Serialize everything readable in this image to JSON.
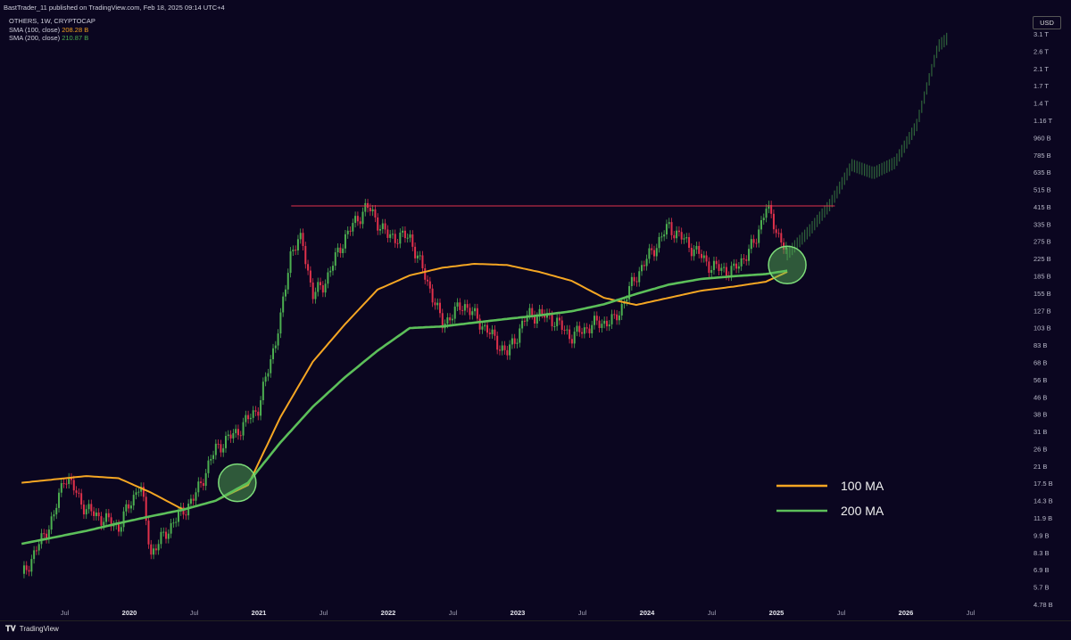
{
  "header": {
    "published": "BastTrader_11 published on TradingView.com, Feb 18, 2025 09:14 UTC+4",
    "symbol": "OTHERS, 1W, CRYPTOCAP",
    "sma100_label": "SMA (100, close)",
    "sma100_value": "208.28 B",
    "sma200_label": "SMA (200, close)",
    "sma200_value": "210.87 B"
  },
  "currency": "USD",
  "footer": {
    "brand": "TradingView"
  },
  "colors": {
    "background": "#0b0620",
    "up": "#4caf50",
    "down": "#e0314b",
    "ma100": "#f5a623",
    "ma200": "#5cbf5a",
    "resistance": "#e0314b",
    "highlight": "#5cbf5a"
  },
  "chart_data": {
    "type": "line",
    "scale": "log",
    "ylim": [
      4.78,
      3100
    ],
    "y_unit": "B USD",
    "y_ticks": [
      "3.1 T",
      "2.6 T",
      "2.1 T",
      "1.7 T",
      "1.4 T",
      "1.16 T",
      "960 B",
      "785 B",
      "635 B",
      "515 B",
      "415 B",
      "335 B",
      "275 B",
      "225 B",
      "185 B",
      "155 B",
      "127 B",
      "103 B",
      "83 B",
      "68 B",
      "56 B",
      "46 B",
      "38 B",
      "31 B",
      "26 B",
      "21 B",
      "17.5 B",
      "14.3 B",
      "11.9 B",
      "9.9 B",
      "8.3 B",
      "6.9 B",
      "5.7 B",
      "4.78 B"
    ],
    "x_ticks": [
      "Jul",
      "2020",
      "Jul",
      "2021",
      "Jul",
      "2022",
      "Jul",
      "2023",
      "Jul",
      "2024",
      "Jul",
      "2025",
      "Jul",
      "2026",
      "Jul"
    ],
    "xlim": [
      "2019-03",
      "2026-08"
    ],
    "legend": {
      "position": "bottom-right",
      "entries": [
        "100 MA",
        "200 MA"
      ]
    },
    "resistance_level": 440,
    "series": [
      {
        "name": "100 MA",
        "color": "#f5a623",
        "points": [
          [
            "2019-03",
            19
          ],
          [
            "2019-09",
            20.5
          ],
          [
            "2019-12",
            20
          ],
          [
            "2020-03",
            17
          ],
          [
            "2020-06",
            14
          ],
          [
            "2020-09",
            15.5
          ],
          [
            "2020-12",
            18.5
          ],
          [
            "2021-03",
            40
          ],
          [
            "2021-06",
            75
          ],
          [
            "2021-09",
            115
          ],
          [
            "2021-12",
            170
          ],
          [
            "2022-03",
            200
          ],
          [
            "2022-06",
            218
          ],
          [
            "2022-09",
            228
          ],
          [
            "2022-12",
            225
          ],
          [
            "2023-03",
            208
          ],
          [
            "2023-06",
            188
          ],
          [
            "2023-09",
            155
          ],
          [
            "2023-12",
            143
          ],
          [
            "2024-03",
            155
          ],
          [
            "2024-06",
            168
          ],
          [
            "2024-09",
            176
          ],
          [
            "2024-12",
            186
          ],
          [
            "2025-02",
            208
          ]
        ]
      },
      {
        "name": "200 MA",
        "color": "#5cbf5a",
        "points": [
          [
            "2019-03",
            9.5
          ],
          [
            "2019-09",
            11
          ],
          [
            "2019-12",
            12
          ],
          [
            "2020-03",
            13
          ],
          [
            "2020-06",
            14
          ],
          [
            "2020-09",
            15.5
          ],
          [
            "2020-12",
            19
          ],
          [
            "2021-03",
            30
          ],
          [
            "2021-06",
            45
          ],
          [
            "2021-09",
            63
          ],
          [
            "2021-12",
            85
          ],
          [
            "2022-03",
            110
          ],
          [
            "2022-06",
            112
          ],
          [
            "2022-09",
            117
          ],
          [
            "2022-12",
            122
          ],
          [
            "2023-03",
            127
          ],
          [
            "2023-06",
            133
          ],
          [
            "2023-09",
            144
          ],
          [
            "2023-12",
            162
          ],
          [
            "2024-03",
            180
          ],
          [
            "2024-06",
            192
          ],
          [
            "2024-09",
            198
          ],
          [
            "2024-12",
            203
          ],
          [
            "2025-02",
            211
          ]
        ]
      },
      {
        "name": "weekly_close",
        "color": "#4caf50",
        "points": [
          [
            "2019-03",
            6.5
          ],
          [
            "2019-06",
            13
          ],
          [
            "2019-07",
            21
          ],
          [
            "2019-09",
            14
          ],
          [
            "2019-12",
            11.5
          ],
          [
            "2020-02",
            19
          ],
          [
            "2020-03",
            8.5
          ],
          [
            "2020-05",
            12
          ],
          [
            "2020-07",
            16
          ],
          [
            "2020-09",
            28
          ],
          [
            "2020-11",
            34
          ],
          [
            "2021-01",
            45
          ],
          [
            "2021-03",
            120
          ],
          [
            "2021-04",
            270
          ],
          [
            "2021-05",
            300
          ],
          [
            "2021-06",
            160
          ],
          [
            "2021-07",
            180
          ],
          [
            "2021-09",
            310
          ],
          [
            "2021-11",
            440
          ],
          [
            "2022-01",
            310
          ],
          [
            "2022-03",
            310
          ],
          [
            "2022-05",
            165
          ],
          [
            "2022-06",
            115
          ],
          [
            "2022-08",
            145
          ],
          [
            "2022-10",
            110
          ],
          [
            "2022-12",
            82
          ],
          [
            "2023-02",
            130
          ],
          [
            "2023-04",
            125
          ],
          [
            "2023-06",
            100
          ],
          [
            "2023-08",
            115
          ],
          [
            "2023-10",
            120
          ],
          [
            "2023-12",
            200
          ],
          [
            "2024-03",
            350
          ],
          [
            "2024-05",
            280
          ],
          [
            "2024-07",
            220
          ],
          [
            "2024-09",
            210
          ],
          [
            "2024-11",
            290
          ],
          [
            "2024-12",
            440
          ],
          [
            "2025-02",
            255
          ]
        ]
      },
      {
        "name": "projection",
        "color": "#4caf50",
        "points": [
          [
            "2025-02",
            255
          ],
          [
            "2025-04",
            330
          ],
          [
            "2025-06",
            450
          ],
          [
            "2025-07",
            560
          ],
          [
            "2025-08",
            700
          ],
          [
            "2025-10",
            640
          ],
          [
            "2025-12",
            720
          ],
          [
            "2026-02",
            1100
          ],
          [
            "2026-04",
            2700
          ],
          [
            "2026-05",
            3000
          ]
        ]
      }
    ],
    "annotations": [
      {
        "type": "circle",
        "at": [
          "2020-11",
          19
        ]
      },
      {
        "type": "circle",
        "at": [
          "2025-02",
          225
        ]
      }
    ]
  }
}
